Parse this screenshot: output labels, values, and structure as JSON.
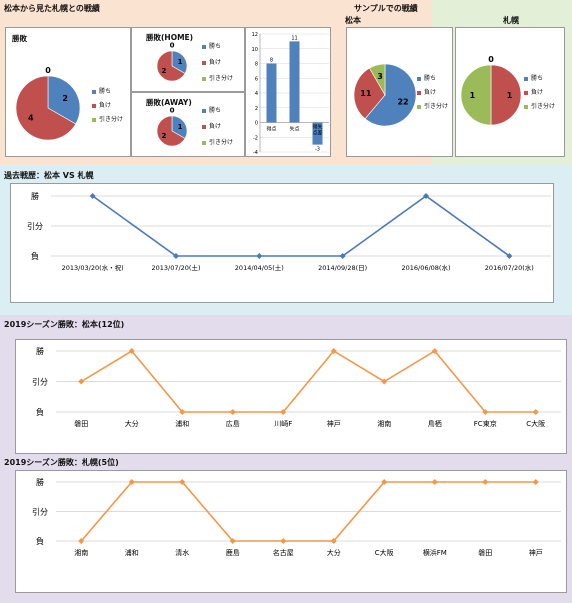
{
  "colors": {
    "top_left_bg": "#fbe3d1",
    "top_right_bg": "#e3efd6",
    "history_bg": "#dbeef3",
    "season_bg": "#e3dced",
    "win": "#4f81bd",
    "loss": "#c0504d",
    "draw": "#9bbb59",
    "history_line": "#4a7ab8",
    "season_line": "#f79646",
    "bar": "#4f81bd"
  },
  "legend": {
    "win": "勝ち",
    "loss": "負け",
    "draw": "引き分け"
  },
  "top_left": {
    "title": "松本から見た札幌との戦績",
    "overall": {
      "title": "勝敗",
      "win": 2,
      "loss": 4,
      "draw": 0
    },
    "home": {
      "title": "勝敗(HOME)",
      "win": 1,
      "loss": 2,
      "draw": 0
    },
    "away": {
      "title": "勝敗(AWAY)",
      "win": 1,
      "loss": 2,
      "draw": 0
    },
    "bar_chart": {
      "type": "bar",
      "categories": [
        "得点",
        "失点",
        "得失点差"
      ],
      "values": [
        8,
        11,
        -3
      ],
      "ylim": [
        -4,
        12
      ],
      "yticks": [
        -4,
        -2,
        0,
        2,
        4,
        6,
        8,
        10,
        12
      ]
    }
  },
  "top_right": {
    "title": "サンプルでの戦績",
    "matsumoto": {
      "title": "松本",
      "win": 22,
      "loss": 11,
      "draw": 3
    },
    "sapporo": {
      "title": "札幌",
      "win": 0,
      "loss": 1,
      "draw": 1
    }
  },
  "history": {
    "title": "過去戦歴：松本 VS 札幌",
    "y_labels": [
      "勝",
      "引分",
      "負"
    ],
    "chart_data": {
      "type": "line",
      "categories": [
        "2013/03/20(水・祝)",
        "2013/07/20(土)",
        "2014/04/05(土)",
        "2014/09/28(日)",
        "2016/06/08(水)",
        "2016/07/20(水)"
      ],
      "values": [
        2,
        0,
        0,
        0,
        2,
        0
      ]
    }
  },
  "season_matsumoto": {
    "title": "2019シーズン勝敗：松本(12位)",
    "y_labels": [
      "勝",
      "引分",
      "負"
    ],
    "chart_data": {
      "type": "line",
      "categories": [
        "磐田",
        "大分",
        "浦和",
        "広島",
        "川崎F",
        "神戸",
        "湘南",
        "鳥栖",
        "FC東京",
        "C大阪"
      ],
      "values": [
        1,
        2,
        0,
        0,
        0,
        2,
        1,
        2,
        0,
        0
      ]
    }
  },
  "season_sapporo": {
    "title": "2019シーズン勝敗：札幌(5位)",
    "y_labels": [
      "勝",
      "引分",
      "負"
    ],
    "chart_data": {
      "type": "line",
      "categories": [
        "湘南",
        "浦和",
        "清水",
        "鹿島",
        "名古屋",
        "大分",
        "C大阪",
        "横浜FM",
        "磐田",
        "神戸"
      ],
      "values": [
        0,
        2,
        2,
        0,
        0,
        0,
        2,
        2,
        2,
        2
      ]
    }
  }
}
